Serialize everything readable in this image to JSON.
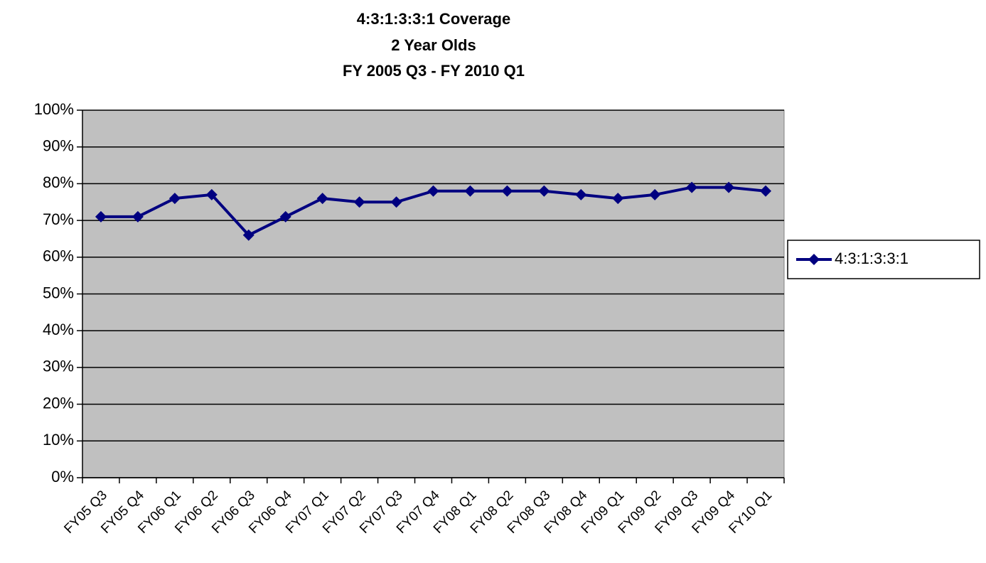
{
  "chart_data": {
    "type": "line",
    "title": [
      "4:3:1:3:3:1 Coverage",
      "2 Year Olds",
      "FY 2005 Q3 - FY 2010 Q1"
    ],
    "categories": [
      "FY05 Q3",
      "FY05 Q4",
      "FY06 Q1",
      "FY06 Q2",
      "FY06 Q3",
      "FY06 Q4",
      "FY07 Q1",
      "FY07 Q2",
      "FY07 Q3",
      "FY07 Q4",
      "FY08 Q1",
      "FY08 Q2",
      "FY08 Q3",
      "FY08 Q4",
      "FY09 Q1",
      "FY09 Q2",
      "FY09 Q3",
      "FY09 Q4",
      "FY10 Q1"
    ],
    "series": [
      {
        "name": "4:3:1:3:3:1",
        "color": "#000080",
        "values": [
          71,
          71,
          76,
          77,
          66,
          71,
          76,
          75,
          75,
          78,
          78,
          78,
          78,
          77,
          76,
          77,
          79,
          79,
          78
        ]
      }
    ],
    "ylim": [
      0,
      100
    ],
    "yticks": [
      {
        "value": 0,
        "label": "0%"
      },
      {
        "value": 10,
        "label": "10%"
      },
      {
        "value": 20,
        "label": "20%"
      },
      {
        "value": 30,
        "label": "30%"
      },
      {
        "value": 40,
        "label": "40%"
      },
      {
        "value": 50,
        "label": "50%"
      },
      {
        "value": 60,
        "label": "60%"
      },
      {
        "value": 70,
        "label": "70%"
      },
      {
        "value": 80,
        "label": "80%"
      },
      {
        "value": 90,
        "label": "90%"
      },
      {
        "value": 100,
        "label": "100%"
      }
    ],
    "grid": true,
    "legend": "right",
    "plot_background": "#c0c0c0"
  }
}
